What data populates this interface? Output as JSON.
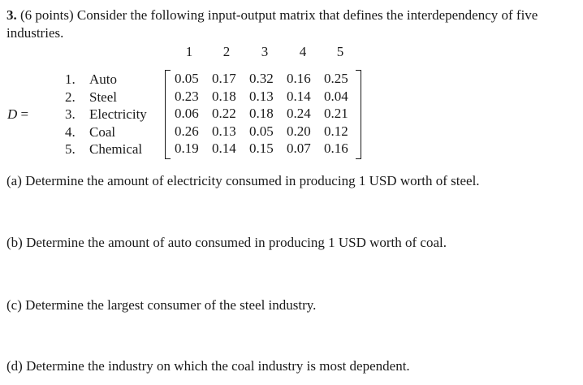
{
  "problem": {
    "number": "3.",
    "intro": "(6 points) Consider the following input-output matrix that defines the interdependency of five industries."
  },
  "matrix": {
    "label_var": "D",
    "label_eq": "=",
    "column_headers": [
      "1",
      "2",
      "3",
      "4",
      "5"
    ],
    "industries": [
      {
        "num": "1.",
        "name": "Auto"
      },
      {
        "num": "2.",
        "name": "Steel"
      },
      {
        "num": "3.",
        "name": "Electricity"
      },
      {
        "num": "4.",
        "name": "Coal"
      },
      {
        "num": "5.",
        "name": "Chemical"
      }
    ],
    "rows": [
      [
        "0.05",
        "0.17",
        "0.32",
        "0.16",
        "0.25"
      ],
      [
        "0.23",
        "0.18",
        "0.13",
        "0.14",
        "0.04"
      ],
      [
        "0.06",
        "0.22",
        "0.18",
        "0.24",
        "0.21"
      ],
      [
        "0.26",
        "0.13",
        "0.05",
        "0.20",
        "0.12"
      ],
      [
        "0.19",
        "0.14",
        "0.15",
        "0.07",
        "0.16"
      ]
    ]
  },
  "questions": {
    "a": "(a) Determine the amount of electricity consumed in producing 1 USD worth of steel.",
    "b": "(b) Determine the amount of auto consumed in producing 1 USD worth of coal.",
    "c": "(c) Determine the largest consumer of the steel industry.",
    "d": "(d) Determine the industry on which the coal industry is most dependent."
  }
}
